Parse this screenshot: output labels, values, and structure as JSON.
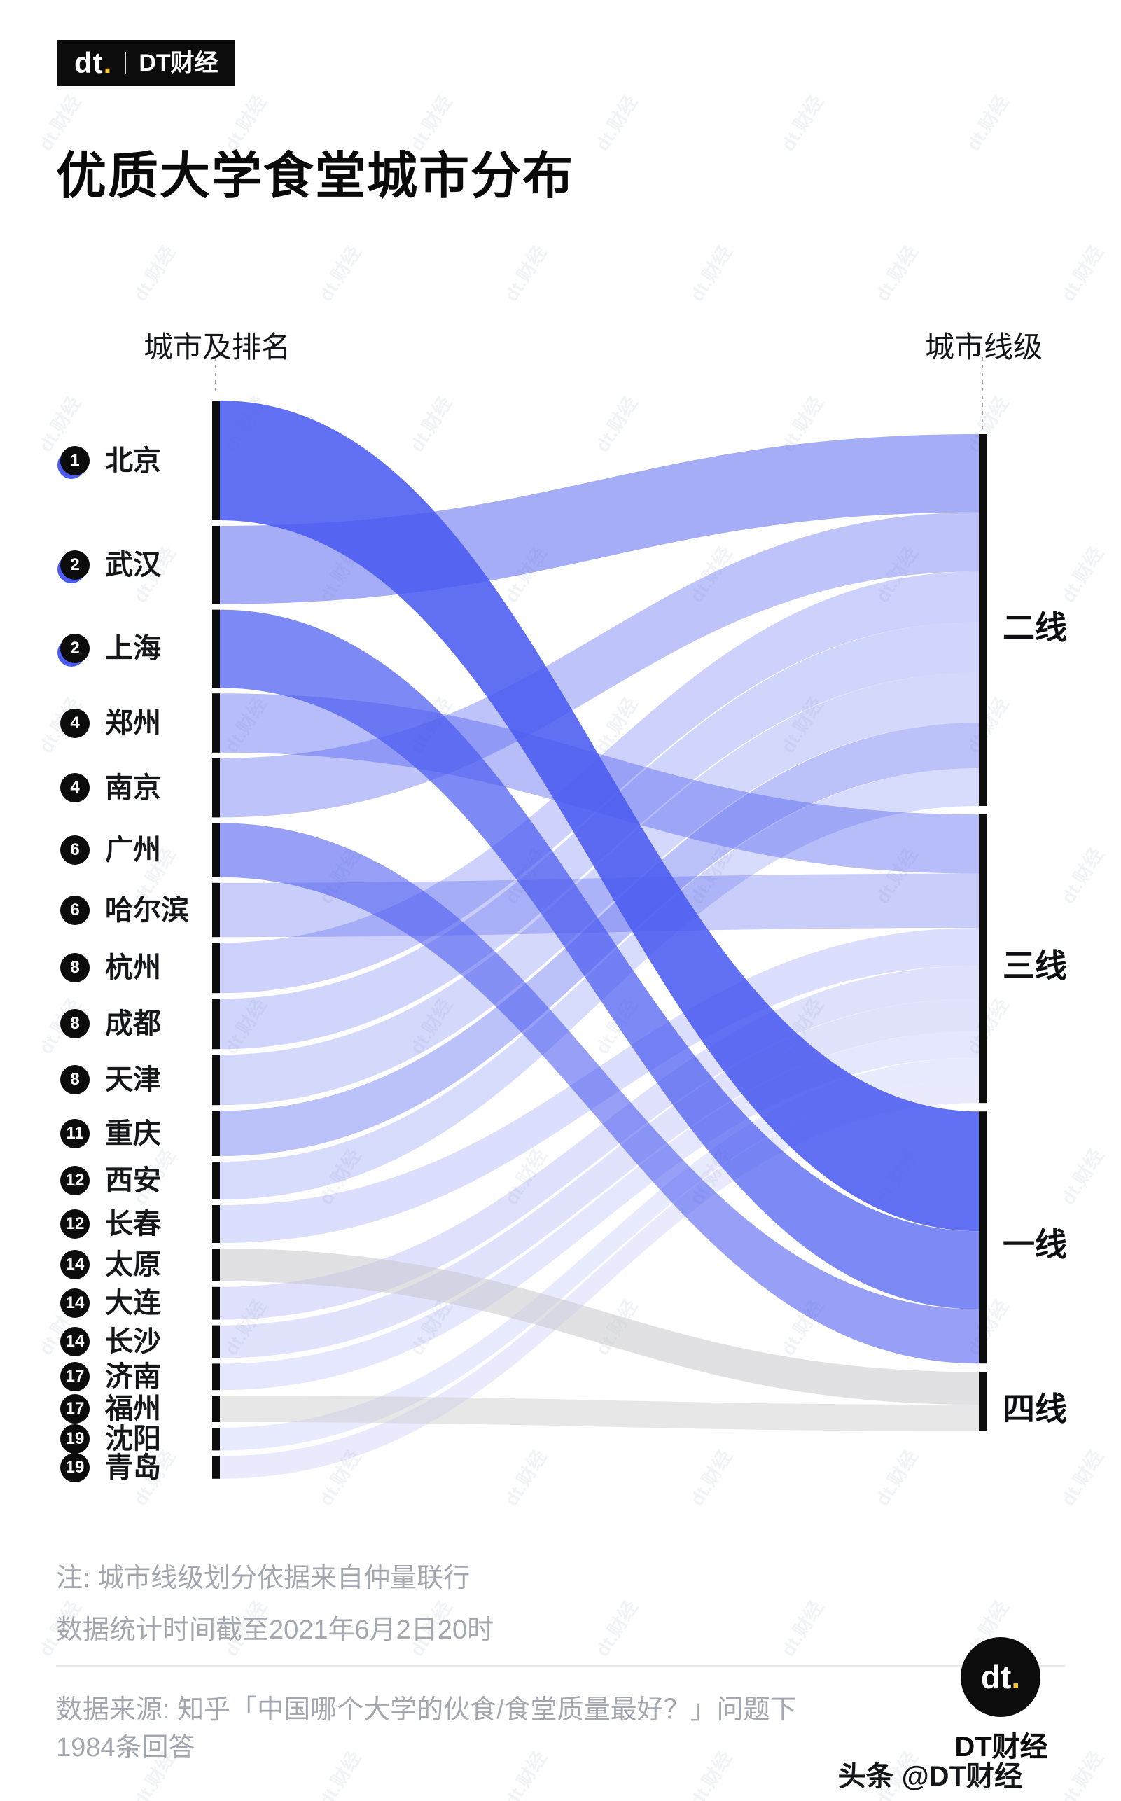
{
  "brand": {
    "logo_dt": "dt",
    "logo_dot": ".",
    "logo_name": "DT财经",
    "watermark": "dt.财经",
    "accent_yellow": "#f7c83c",
    "black": "#0c0c0c"
  },
  "title": "优质大学食堂城市分布",
  "chart_data": {
    "type": "sankey",
    "left_header": "城市及排名",
    "right_header": "城市线级",
    "flow_color": "#4b5bf0",
    "tier4_color": "#c9c9cd",
    "bar_color": "#0d0d0d",
    "tiers": [
      "二线",
      "三线",
      "一线",
      "四线"
    ],
    "cities": [
      {
        "rank": 1,
        "name": "北京",
        "value": 95,
        "tier": "一线",
        "opacity": 0.88
      },
      {
        "rank": 2,
        "name": "武汉",
        "value": 62,
        "tier": "二线",
        "opacity": 0.5
      },
      {
        "rank": 2,
        "name": "上海",
        "value": 62,
        "tier": "一线",
        "opacity": 0.72
      },
      {
        "rank": 4,
        "name": "郑州",
        "value": 47,
        "tier": "三线",
        "opacity": 0.4
      },
      {
        "rank": 4,
        "name": "南京",
        "value": 47,
        "tier": "二线",
        "opacity": 0.36
      },
      {
        "rank": 6,
        "name": "广州",
        "value": 43,
        "tier": "一线",
        "opacity": 0.58
      },
      {
        "rank": 6,
        "name": "哈尔滨",
        "value": 43,
        "tier": "三线",
        "opacity": 0.3
      },
      {
        "rank": 8,
        "name": "杭州",
        "value": 40,
        "tier": "二线",
        "opacity": 0.28
      },
      {
        "rank": 8,
        "name": "成都",
        "value": 40,
        "tier": "二线",
        "opacity": 0.26
      },
      {
        "rank": 8,
        "name": "天津",
        "value": 40,
        "tier": "二线",
        "opacity": 0.24
      },
      {
        "rank": 11,
        "name": "重庆",
        "value": 36,
        "tier": "二线",
        "opacity": 0.38
      },
      {
        "rank": 12,
        "name": "西安",
        "value": 30,
        "tier": "二线",
        "opacity": 0.22
      },
      {
        "rank": 12,
        "name": "长春",
        "value": 30,
        "tier": "三线",
        "opacity": 0.2
      },
      {
        "rank": 14,
        "name": "太原",
        "value": 26,
        "tier": "四线",
        "opacity": 0.55
      },
      {
        "rank": 14,
        "name": "大连",
        "value": 26,
        "tier": "三线",
        "opacity": 0.18
      },
      {
        "rank": 14,
        "name": "长沙",
        "value": 26,
        "tier": "三线",
        "opacity": 0.17
      },
      {
        "rank": 17,
        "name": "济南",
        "value": 21,
        "tier": "三线",
        "opacity": 0.15
      },
      {
        "rank": 17,
        "name": "福州",
        "value": 21,
        "tier": "四线",
        "opacity": 0.45
      },
      {
        "rank": 19,
        "name": "沈阳",
        "value": 18,
        "tier": "三线",
        "opacity": 0.13
      },
      {
        "rank": 19,
        "name": "青岛",
        "value": 18,
        "tier": "三线",
        "opacity": 0.12
      }
    ]
  },
  "footer": {
    "note1": "注: 城市线级划分依据来自仲量联行",
    "note2": "数据统计时间截至2021年6月2日20时",
    "source_line1": "数据来源: 知乎「中国哪个大学的伙食/食堂质量最好？」问题下",
    "source_line2": "1984条回答",
    "credit": "头条 @DT财经",
    "logo_caption": "DT财经"
  }
}
